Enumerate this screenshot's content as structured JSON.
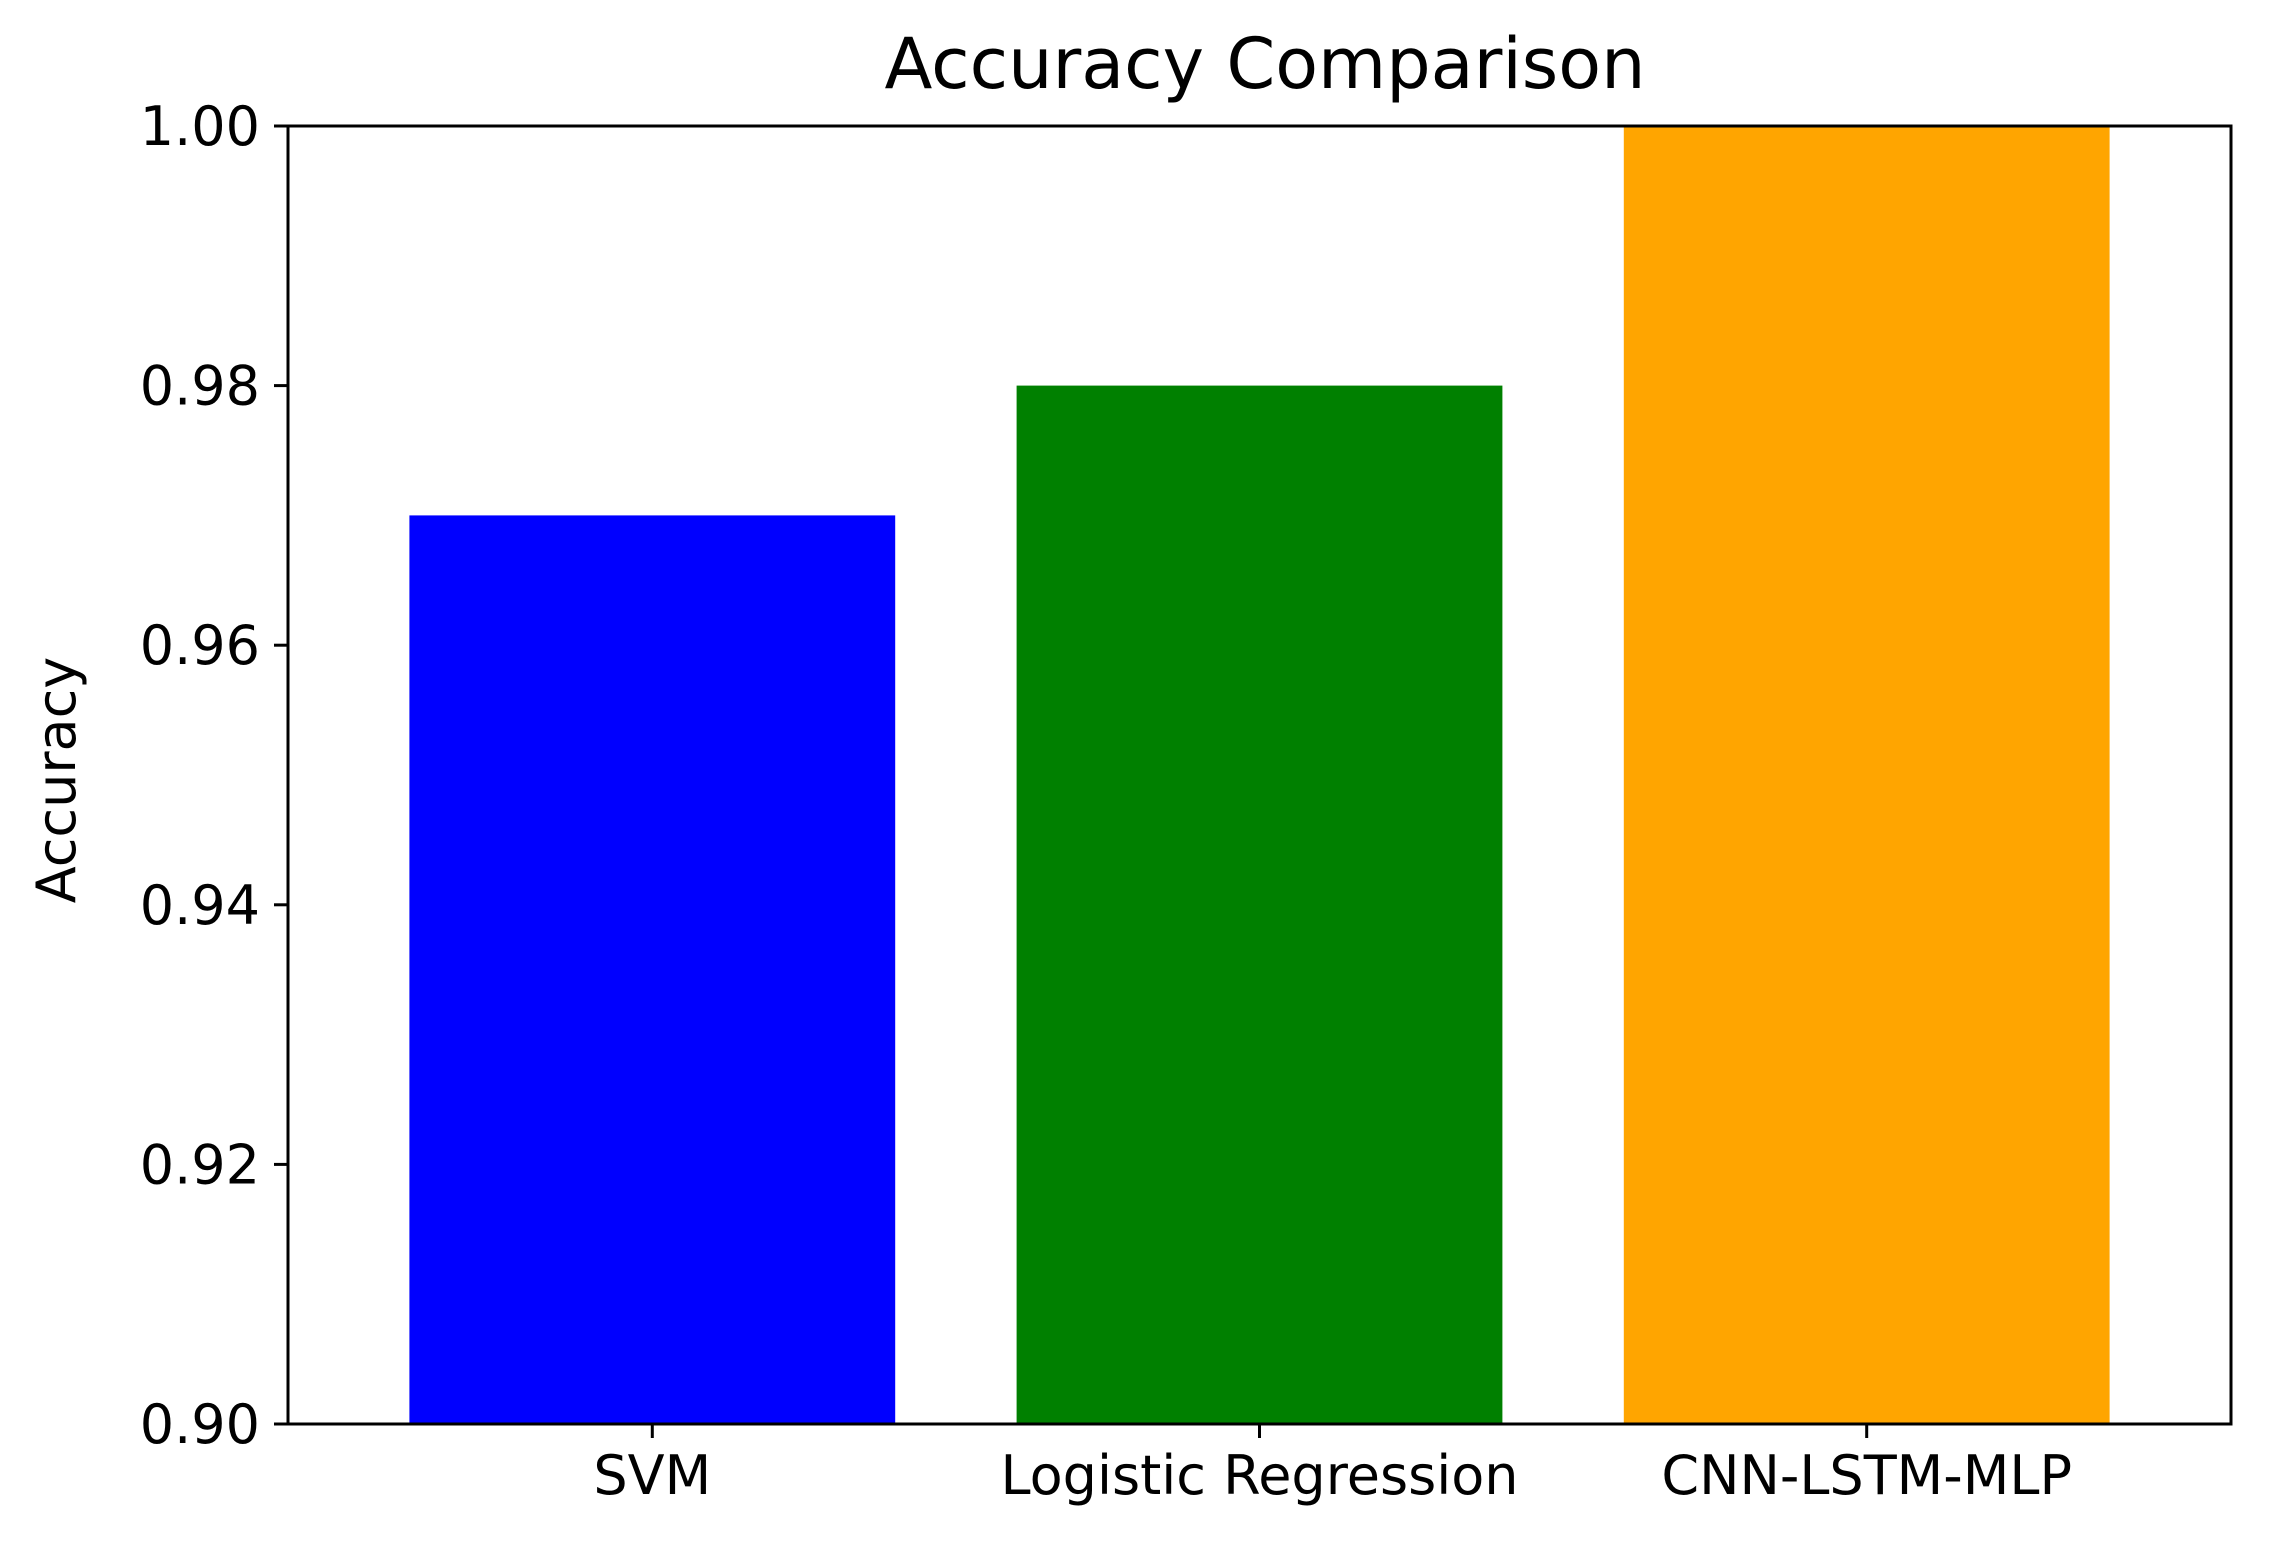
{
  "chart_data": {
    "type": "bar",
    "title": "Accuracy Comparison",
    "xlabel": "",
    "ylabel": "Accuracy",
    "categories": [
      "SVM",
      "Logistic Regression",
      "CNN-LSTM-MLP"
    ],
    "values": [
      0.97,
      0.98,
      1.0
    ],
    "colors": [
      "#0000ff",
      "#008000",
      "#ffa500"
    ],
    "ylim": [
      0.9,
      1.0
    ],
    "yticks": [
      0.9,
      0.92,
      0.94,
      0.96,
      0.98,
      1.0
    ],
    "ytick_labels": [
      "0.90",
      "0.92",
      "0.94",
      "0.96",
      "0.98",
      "1.00"
    ],
    "grid": false,
    "legend": "none"
  }
}
